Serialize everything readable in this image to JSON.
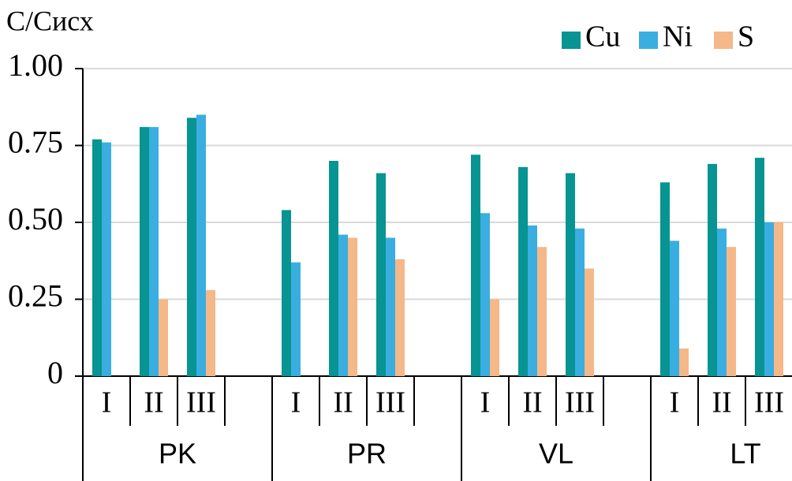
{
  "chart_data": {
    "type": "bar",
    "y_label": "C/Cисх",
    "categories": [
      "I",
      "II",
      "III",
      "I",
      "II",
      "III",
      "I",
      "II",
      "III",
      "I",
      "II",
      "III"
    ],
    "groups": [
      "PK",
      "PR",
      "VL",
      "LT"
    ],
    "series": [
      {
        "name": "Cu",
        "color": "#079492",
        "values": [
          0.77,
          0.81,
          0.84,
          0.54,
          0.7,
          0.66,
          0.72,
          0.68,
          0.66,
          0.63,
          0.69,
          0.71
        ]
      },
      {
        "name": "Ni",
        "color": "#3aaee0",
        "values": [
          0.76,
          0.81,
          0.85,
          0.37,
          0.46,
          0.45,
          0.53,
          0.49,
          0.48,
          0.44,
          0.48,
          0.5
        ]
      },
      {
        "name": "S",
        "color": "#f5b888",
        "values": [
          null,
          0.25,
          0.28,
          null,
          0.45,
          0.38,
          0.25,
          0.42,
          0.35,
          0.09,
          0.42,
          0.5
        ]
      }
    ],
    "ylim": [
      0,
      1
    ],
    "yticks": [
      0,
      0.25,
      {
        "value": 0.5,
        "label": "0.50"
      },
      0.75,
      {
        "value": 1,
        "label": "1.00"
      }
    ],
    "grid": true
  }
}
